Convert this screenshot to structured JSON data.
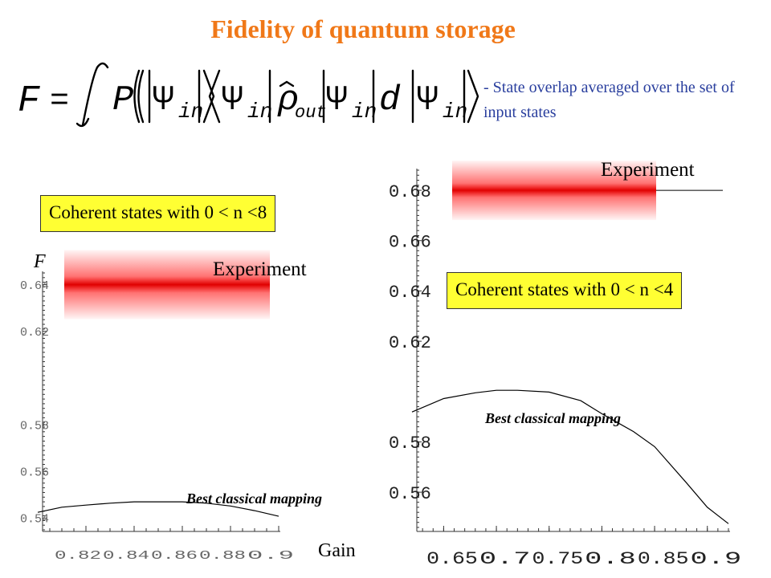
{
  "slide": {
    "title": "Fidelity of quantum storage",
    "note": "-  State overlap averaged over the set of input states",
    "box_left": "Coherent states with 0 < n <8",
    "box_right": "Coherent states with 0 < n <4"
  },
  "colors": {
    "title": "#f07818",
    "note": "#2a3f9e",
    "box": "#ffff33",
    "band": "#ff0000"
  },
  "chart_data": [
    {
      "type": "line",
      "title": "",
      "xlabel": "Gain",
      "ylabel": "F",
      "xlim": [
        0.8,
        0.9
      ],
      "ylim": [
        0.535,
        0.645
      ],
      "x_ticks": [
        "0.82",
        "0.84",
        "0.86",
        "0.88",
        "0.9"
      ],
      "y_ticks": [
        "0.64",
        "0.62",
        "0.58",
        "0.56",
        "0.54"
      ],
      "series": [
        {
          "name": "Best classical mapping",
          "x": [
            0.8,
            0.81,
            0.82,
            0.83,
            0.84,
            0.85,
            0.86,
            0.87,
            0.88,
            0.89,
            0.9
          ],
          "y": [
            0.5425,
            0.5447,
            0.5456,
            0.5464,
            0.547,
            0.547,
            0.547,
            0.5464,
            0.5452,
            0.5432,
            0.5408
          ]
        }
      ],
      "experiment_band": {
        "label": "Experiment",
        "center": 0.64
      }
    },
    {
      "type": "line",
      "title": "",
      "xlabel": "",
      "ylabel": "",
      "xlim": [
        0.62,
        0.92
      ],
      "ylim": [
        0.546,
        0.688
      ],
      "x_ticks": [
        "0.65",
        "0.7",
        "0.75",
        "0.8",
        "0.85",
        "0.9"
      ],
      "y_ticks": [
        "0.68",
        "0.66",
        "0.64",
        "0.62",
        "0.58",
        "0.56"
      ],
      "series": [
        {
          "name": "Best classical mapping",
          "x": [
            0.62,
            0.65,
            0.68,
            0.7,
            0.72,
            0.75,
            0.78,
            0.8,
            0.83,
            0.85,
            0.88,
            0.9,
            0.92
          ],
          "y": [
            0.5919,
            0.5972,
            0.5995,
            0.6005,
            0.6005,
            0.5998,
            0.5964,
            0.5912,
            0.5841,
            0.5781,
            0.5638,
            0.554,
            0.5475
          ]
        }
      ],
      "experiment_band": {
        "label": "Experiment",
        "center": 0.68
      }
    }
  ]
}
